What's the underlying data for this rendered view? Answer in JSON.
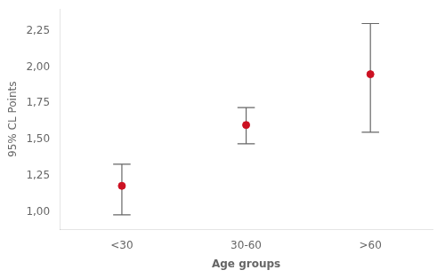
{
  "chart_data": {
    "type": "errorbar",
    "xlabel": "Age groups",
    "ylabel": "95% CL Points",
    "categories": [
      "<30",
      "30-60",
      ">60"
    ],
    "values": [
      1.18,
      1.6,
      1.95
    ],
    "lower_errors": [
      0.2,
      0.13,
      0.4
    ],
    "upper_errors": [
      0.15,
      0.12,
      0.35
    ],
    "color": "#cc1122",
    "ylim": [
      0.88,
      2.4
    ],
    "yticks": [
      {
        "value": 1.0,
        "label": "1,00"
      },
      {
        "value": 1.25,
        "label": "1,25"
      },
      {
        "value": 1.5,
        "label": "1,50"
      },
      {
        "value": 1.75,
        "label": "1,75"
      },
      {
        "value": 2.0,
        "label": "2,00"
      },
      {
        "value": 2.25,
        "label": "2,25"
      }
    ],
    "grid": false
  }
}
